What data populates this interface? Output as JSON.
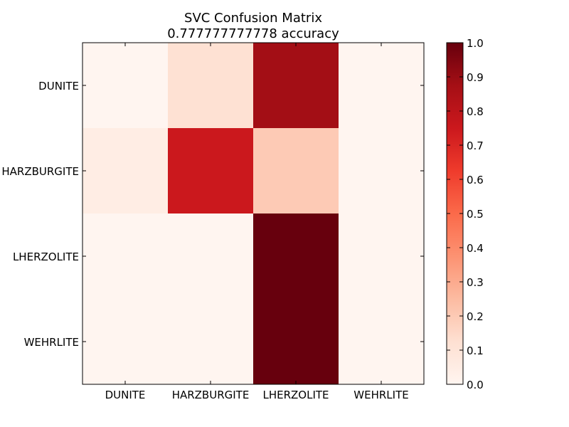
{
  "chart_data": {
    "type": "heatmap",
    "title": "SVC Confusion Matrix",
    "subtitle": "0.777777777778 accuracy",
    "xlabel": "",
    "ylabel": "",
    "x_categories": [
      "DUNITE",
      "HARZBURGITE",
      "LHERZOLITE",
      "WEHRLITE"
    ],
    "y_categories": [
      "DUNITE",
      "HARZBURGITE",
      "LHERZOLITE",
      "WEHRLITE"
    ],
    "values": [
      [
        0.0,
        0.12,
        0.88,
        0.0
      ],
      [
        0.05,
        0.75,
        0.2,
        0.0
      ],
      [
        0.0,
        0.0,
        1.0,
        0.0
      ],
      [
        0.0,
        0.0,
        1.0,
        0.0
      ]
    ],
    "colormap": "Reds",
    "colorbar": {
      "range": [
        0.0,
        1.0
      ],
      "ticks": [
        "0.0",
        "0.1",
        "0.2",
        "0.3",
        "0.4",
        "0.5",
        "0.6",
        "0.7",
        "0.8",
        "0.9",
        "1.0"
      ]
    },
    "grid": false
  }
}
